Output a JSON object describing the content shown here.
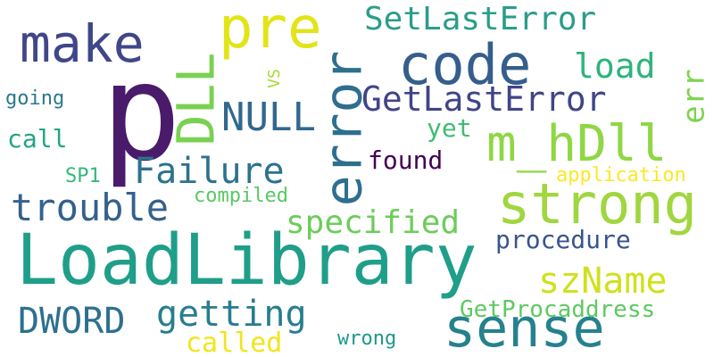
{
  "words": [
    {
      "key": "p",
      "text": "p",
      "color": "#4a1a6b"
    },
    {
      "key": "LoadLibrary",
      "text": "LoadLibrary",
      "color": "#1f9e89"
    },
    {
      "key": "sense",
      "text": "sense",
      "color": "#26818e"
    },
    {
      "key": "strong",
      "text": "strong",
      "color": "#a0d63f"
    },
    {
      "key": "code",
      "text": "code",
      "color": "#355e8c"
    },
    {
      "key": "error",
      "text": "error",
      "color": "#2e6f8e"
    },
    {
      "key": "m_hDll",
      "text": "m_hDll",
      "color": "#8fd744"
    },
    {
      "key": "make",
      "text": "make",
      "color": "#3f4788"
    },
    {
      "key": "pre",
      "text": "pre",
      "color": "#e2e418"
    },
    {
      "key": "DLL",
      "text": "DLL",
      "color": "#7ad151"
    },
    {
      "key": "GetLastError",
      "text": "GetLastError",
      "color": "#414487"
    },
    {
      "key": "SetLastError",
      "text": "SetLastError",
      "color": "#2a9d8a"
    },
    {
      "key": "NULL",
      "text": "NULL",
      "color": "#31688e"
    },
    {
      "key": "Failure",
      "text": "Failure",
      "color": "#2c728e"
    },
    {
      "key": "trouble",
      "text": "trouble",
      "color": "#34618d"
    },
    {
      "key": "getting",
      "text": "getting",
      "color": "#287d8e"
    },
    {
      "key": "specified",
      "text": "specified",
      "color": "#6ccd5a"
    },
    {
      "key": "szName",
      "text": "szName",
      "color": "#d0e11c"
    },
    {
      "key": "DWORD",
      "text": "DWORD",
      "color": "#2d708e"
    },
    {
      "key": "load",
      "text": "load",
      "color": "#2eb37c"
    },
    {
      "key": "err",
      "text": "err",
      "color": "#7fd34e"
    },
    {
      "key": "procedure",
      "text": "procedure",
      "color": "#3a548c"
    },
    {
      "key": "found",
      "text": "found",
      "color": "#440154"
    },
    {
      "key": "GetProcaddress",
      "text": "GetProcaddress",
      "color": "#5ec962"
    },
    {
      "key": "called",
      "text": "called",
      "color": "#f1e51d"
    },
    {
      "key": "call",
      "text": "call",
      "color": "#21a685"
    },
    {
      "key": "yet",
      "text": "yet",
      "color": "#3fbc73"
    },
    {
      "key": "application",
      "text": "application",
      "color": "#fde725"
    },
    {
      "key": "compiled",
      "text": "compiled",
      "color": "#5ac864"
    },
    {
      "key": "going",
      "text": "going",
      "color": "#2a788e"
    },
    {
      "key": "SP1",
      "text": "SP1",
      "color": "#35b779"
    },
    {
      "key": "wrong",
      "text": "wrong",
      "color": "#1f988b"
    },
    {
      "key": "VS",
      "text": "VS",
      "color": "#a5db36"
    }
  ]
}
